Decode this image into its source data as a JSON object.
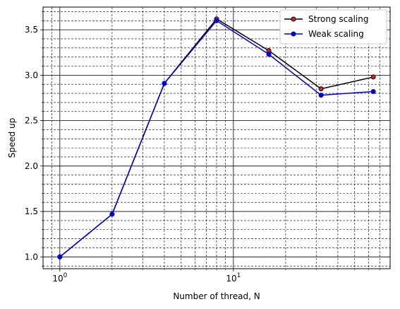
{
  "chart_data": {
    "type": "line",
    "xscale": "log",
    "x": [
      1,
      2,
      4,
      8,
      16,
      32,
      64
    ],
    "xlim": [
      0.8,
      80
    ],
    "ylim": [
      0.87,
      3.75
    ],
    "xlabel": "Number of thread, N",
    "ylabel": "Speed up",
    "grid": true,
    "legend_position": "upper right",
    "x_ticks": [
      {
        "value": 1,
        "base": "10",
        "exp": "0"
      },
      {
        "value": 10,
        "base": "10",
        "exp": "1"
      }
    ],
    "y_ticks": [
      {
        "value": 1.0,
        "label": "1.0"
      },
      {
        "value": 1.5,
        "label": "1.5"
      },
      {
        "value": 2.0,
        "label": "2.0"
      },
      {
        "value": 2.5,
        "label": "2.5"
      },
      {
        "value": 3.0,
        "label": "3.0"
      },
      {
        "value": 3.5,
        "label": "3.5"
      }
    ],
    "series": [
      {
        "name": "Strong scaling",
        "line_color": "#000000",
        "marker_color": "#d62728",
        "values": [
          1.0,
          1.47,
          2.91,
          3.62,
          3.27,
          2.85,
          2.98
        ]
      },
      {
        "name": "Weak scaling",
        "line_color": "#0000cc",
        "marker_color": "#0000cc",
        "values": [
          1.0,
          1.47,
          2.91,
          3.6,
          3.23,
          2.78,
          2.82
        ]
      }
    ]
  }
}
